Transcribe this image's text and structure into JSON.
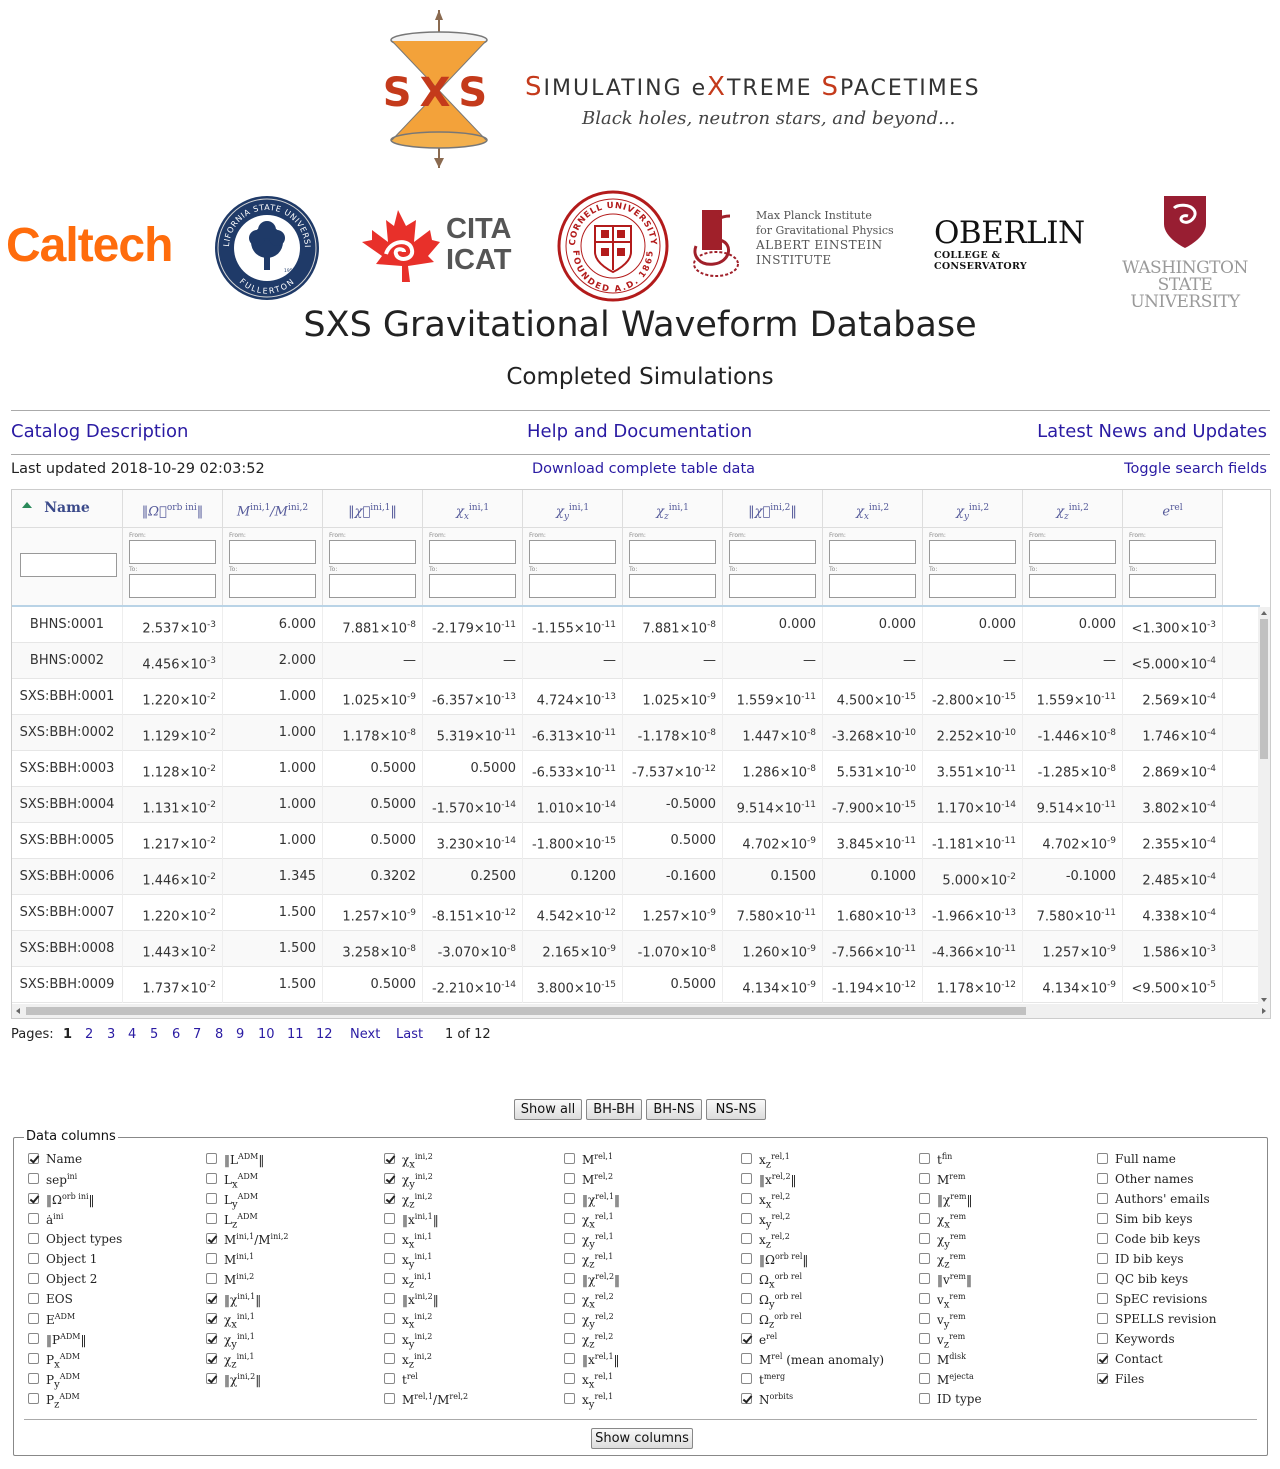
{
  "banner": {
    "logo_text": "SXS",
    "title_parts": [
      {
        "cap": "S",
        "rest": "IMULATING "
      },
      {
        "cap": "",
        "rest": "e"
      },
      {
        "cap": "X",
        "rest": "TREME "
      },
      {
        "cap": "S",
        "rest": "PACETIMES"
      }
    ],
    "tagline": "Black holes, neutron stars, and beyond..."
  },
  "logos": {
    "caltech": "Caltech",
    "cita": [
      "CITA",
      "ICAT"
    ],
    "mpi": [
      "Max Planck Institute",
      "for Gravitational Physics",
      "ALBERT EINSTEIN INSTITUTE"
    ],
    "oberlin_main": "OBERLIN",
    "oberlin_sub": "COLLEGE & CONSERVATORY",
    "wsu": [
      "WASHINGTON STATE",
      "UNIVERSITY"
    ],
    "csuf_ring_top": "CALIFORNIA STATE UNIVERSITY",
    "csuf_ring_bottom": "FULLERTON",
    "csuf_year": "1957",
    "cornell_ring_top": "CORNELL UNIVERSITY",
    "cornell_ring_bottom": "FOUNDED A.D. 1865"
  },
  "page": {
    "title": "SXS Gravitational Waveform Database",
    "subtitle": "Completed Simulations"
  },
  "nav": {
    "catalog": "Catalog Description",
    "help": "Help and Documentation",
    "news": "Latest News and Updates"
  },
  "info": {
    "last_updated": "Last updated 2018-10-29 02:03:52",
    "download": "Download complete table data",
    "toggle": "Toggle search fields"
  },
  "table": {
    "headers": [
      {
        "base": "Name",
        "sup": ""
      },
      {
        "base": "‖Ω⃗",
        "sup": "orb ini",
        "post": "‖"
      },
      {
        "base": "M",
        "sup": "ini,1",
        "post": "/M",
        "sup2": "ini,2"
      },
      {
        "base": "‖χ⃗",
        "sup": "ini,1",
        "post": "‖"
      },
      {
        "base": "χ",
        "sub": "x",
        "sup": "ini,1"
      },
      {
        "base": "χ",
        "sub": "y",
        "sup": "ini,1"
      },
      {
        "base": "χ",
        "sub": "z",
        "sup": "ini,1"
      },
      {
        "base": "‖χ⃗",
        "sup": "ini,2",
        "post": "‖"
      },
      {
        "base": "χ",
        "sub": "x",
        "sup": "ini,2"
      },
      {
        "base": "χ",
        "sub": "y",
        "sup": "ini,2"
      },
      {
        "base": "χ",
        "sub": "z",
        "sup": "ini,2"
      },
      {
        "base": "e",
        "sup": "rel"
      }
    ],
    "filter_from": "From:",
    "filter_to": "To:",
    "rows": [
      [
        "BHNS:0001",
        "2.537×10^-3",
        "6.000",
        "7.881×10^-8",
        "-2.179×10^-11",
        "-1.155×10^-11",
        "7.881×10^-8",
        "0.000",
        "0.000",
        "0.000",
        "0.000",
        "<1.300×10^-3"
      ],
      [
        "BHNS:0002",
        "4.456×10^-3",
        "2.000",
        "—",
        "—",
        "—",
        "—",
        "—",
        "—",
        "—",
        "—",
        "<5.000×10^-4"
      ],
      [
        "SXS:BBH:0001",
        "1.220×10^-2",
        "1.000",
        "1.025×10^-9",
        "-6.357×10^-13",
        "4.724×10^-13",
        "1.025×10^-9",
        "1.559×10^-11",
        "4.500×10^-15",
        "-2.800×10^-15",
        "1.559×10^-11",
        "2.569×10^-4"
      ],
      [
        "SXS:BBH:0002",
        "1.129×10^-2",
        "1.000",
        "1.178×10^-8",
        "5.319×10^-11",
        "-6.313×10^-11",
        "-1.178×10^-8",
        "1.447×10^-8",
        "-3.268×10^-10",
        "2.252×10^-10",
        "-1.446×10^-8",
        "1.746×10^-4"
      ],
      [
        "SXS:BBH:0003",
        "1.128×10^-2",
        "1.000",
        "0.5000",
        "0.5000",
        "-6.533×10^-11",
        "-7.537×10^-12",
        "1.286×10^-8",
        "5.531×10^-10",
        "3.551×10^-11",
        "-1.285×10^-8",
        "2.869×10^-4"
      ],
      [
        "SXS:BBH:0004",
        "1.131×10^-2",
        "1.000",
        "0.5000",
        "-1.570×10^-14",
        "1.010×10^-14",
        "-0.5000",
        "9.514×10^-11",
        "-7.900×10^-15",
        "1.170×10^-14",
        "9.514×10^-11",
        "3.802×10^-4"
      ],
      [
        "SXS:BBH:0005",
        "1.217×10^-2",
        "1.000",
        "0.5000",
        "3.230×10^-14",
        "-1.800×10^-15",
        "0.5000",
        "4.702×10^-9",
        "3.845×10^-11",
        "-1.181×10^-11",
        "4.702×10^-9",
        "2.355×10^-4"
      ],
      [
        "SXS:BBH:0006",
        "1.446×10^-2",
        "1.345",
        "0.3202",
        "0.2500",
        "0.1200",
        "-0.1600",
        "0.1500",
        "0.1000",
        "5.000×10^-2",
        "-0.1000",
        "2.485×10^-4"
      ],
      [
        "SXS:BBH:0007",
        "1.220×10^-2",
        "1.500",
        "1.257×10^-9",
        "-8.151×10^-12",
        "4.542×10^-12",
        "1.257×10^-9",
        "7.580×10^-11",
        "1.680×10^-13",
        "-1.966×10^-13",
        "7.580×10^-11",
        "4.338×10^-4"
      ],
      [
        "SXS:BBH:0008",
        "1.443×10^-2",
        "1.500",
        "3.258×10^-8",
        "-3.070×10^-8",
        "2.165×10^-9",
        "-1.070×10^-8",
        "1.260×10^-9",
        "-7.566×10^-11",
        "-4.366×10^-11",
        "1.257×10^-9",
        "1.586×10^-3"
      ],
      [
        "SXS:BBH:0009",
        "1.737×10^-2",
        "1.500",
        "0.5000",
        "-2.210×10^-14",
        "3.800×10^-15",
        "0.5000",
        "4.134×10^-9",
        "-1.194×10^-12",
        "1.178×10^-12",
        "4.134×10^-9",
        "<9.500×10^-5"
      ]
    ]
  },
  "pager": {
    "label": "Pages:",
    "current": "1",
    "pages": [
      "2",
      "3",
      "4",
      "5",
      "6",
      "7",
      "8",
      "9",
      "10",
      "11",
      "12"
    ],
    "next": "Next",
    "last": "Last",
    "of": "1 of 12"
  },
  "type_buttons": [
    "Show all",
    "BH-BH",
    "BH-NS",
    "NS-NS"
  ],
  "data_columns": {
    "legend": "Data columns",
    "show_columns": "Show columns",
    "columns": [
      [
        {
          "label": "Name",
          "checked": true
        },
        {
          "label": "sep^ini",
          "checked": false
        },
        {
          "label": "‖Ω^orb ini‖",
          "checked": true
        },
        {
          "label": "ȧ^ini",
          "checked": false
        },
        {
          "label": "Object types",
          "checked": false
        },
        {
          "label": "Object 1",
          "checked": false
        },
        {
          "label": "Object 2",
          "checked": false
        },
        {
          "label": "EOS",
          "checked": false
        },
        {
          "label": "E^ADM",
          "checked": false
        },
        {
          "label": "‖P^ADM‖",
          "checked": false
        },
        {
          "label": "P_x^ADM",
          "checked": false
        },
        {
          "label": "P_y^ADM",
          "checked": false
        },
        {
          "label": "P_z^ADM",
          "checked": false
        }
      ],
      [
        {
          "label": "‖L^ADM‖",
          "checked": false
        },
        {
          "label": "L_x^ADM",
          "checked": false
        },
        {
          "label": "L_y^ADM",
          "checked": false
        },
        {
          "label": "L_z^ADM",
          "checked": false
        },
        {
          "label": "M^ini,1/M^ini,2",
          "checked": true
        },
        {
          "label": "M^ini,1",
          "checked": false
        },
        {
          "label": "M^ini,2",
          "checked": false
        },
        {
          "label": "‖χ^ini,1‖",
          "checked": true
        },
        {
          "label": "χ_x^ini,1",
          "checked": true
        },
        {
          "label": "χ_y^ini,1",
          "checked": true
        },
        {
          "label": "χ_z^ini,1",
          "checked": true
        },
        {
          "label": "‖χ^ini,2‖",
          "checked": true
        }
      ],
      [
        {
          "label": "χ_x^ini,2",
          "checked": true
        },
        {
          "label": "χ_y^ini,2",
          "checked": true
        },
        {
          "label": "χ_z^ini,2",
          "checked": true
        },
        {
          "label": "‖x^ini,1‖",
          "checked": false
        },
        {
          "label": "x_x^ini,1",
          "checked": false
        },
        {
          "label": "x_y^ini,1",
          "checked": false
        },
        {
          "label": "x_z^ini,1",
          "checked": false
        },
        {
          "label": "‖x^ini,2‖",
          "checked": false
        },
        {
          "label": "x_x^ini,2",
          "checked": false
        },
        {
          "label": "x_y^ini,2",
          "checked": false
        },
        {
          "label": "x_z^ini,2",
          "checked": false
        },
        {
          "label": "t^rel",
          "checked": false
        },
        {
          "label": "M^rel,1/M^rel,2",
          "checked": false
        }
      ],
      [
        {
          "label": "M^rel,1",
          "checked": false
        },
        {
          "label": "M^rel,2",
          "checked": false
        },
        {
          "label": "‖χ^rel,1‖",
          "checked": false
        },
        {
          "label": "χ_x^rel,1",
          "checked": false
        },
        {
          "label": "χ_y^rel,1",
          "checked": false
        },
        {
          "label": "χ_z^rel,1",
          "checked": false
        },
        {
          "label": "‖χ^rel,2‖",
          "checked": false
        },
        {
          "label": "χ_x^rel,2",
          "checked": false
        },
        {
          "label": "χ_y^rel,2",
          "checked": false
        },
        {
          "label": "χ_z^rel,2",
          "checked": false
        },
        {
          "label": "‖x^rel,1‖",
          "checked": false
        },
        {
          "label": "x_x^rel,1",
          "checked": false
        },
        {
          "label": "x_y^rel,1",
          "checked": false
        }
      ],
      [
        {
          "label": "x_z^rel,1",
          "checked": false
        },
        {
          "label": "‖x^rel,2‖",
          "checked": false
        },
        {
          "label": "x_x^rel,2",
          "checked": false
        },
        {
          "label": "x_y^rel,2",
          "checked": false
        },
        {
          "label": "x_z^rel,2",
          "checked": false
        },
        {
          "label": "‖Ω^orb rel‖",
          "checked": false
        },
        {
          "label": "Ω_x^orb rel",
          "checked": false
        },
        {
          "label": "Ω_y^orb rel",
          "checked": false
        },
        {
          "label": "Ω_z^orb rel",
          "checked": false
        },
        {
          "label": "e^rel",
          "checked": true
        },
        {
          "label": "M^rel (mean anomaly)",
          "checked": false
        },
        {
          "label": "t^merg",
          "checked": false
        },
        {
          "label": "N^orbits",
          "checked": true
        }
      ],
      [
        {
          "label": "t^fin",
          "checked": false
        },
        {
          "label": "M^rem",
          "checked": false
        },
        {
          "label": "‖χ^rem‖",
          "checked": false
        },
        {
          "label": "χ_x^rem",
          "checked": false
        },
        {
          "label": "χ_y^rem",
          "checked": false
        },
        {
          "label": "χ_z^rem",
          "checked": false
        },
        {
          "label": "‖v^rem‖",
          "checked": false
        },
        {
          "label": "v_x^rem",
          "checked": false
        },
        {
          "label": "v_y^rem",
          "checked": false
        },
        {
          "label": "v_z^rem",
          "checked": false
        },
        {
          "label": "M^disk",
          "checked": false
        },
        {
          "label": "M^ejecta",
          "checked": false
        },
        {
          "label": "ID type",
          "checked": false
        }
      ],
      [
        {
          "label": "Full name",
          "checked": false
        },
        {
          "label": "Other names",
          "checked": false
        },
        {
          "label": "Authors' emails",
          "checked": false
        },
        {
          "label": "Sim bib keys",
          "checked": false
        },
        {
          "label": "Code bib keys",
          "checked": false
        },
        {
          "label": "ID bib keys",
          "checked": false
        },
        {
          "label": "QC bib keys",
          "checked": false
        },
        {
          "label": "SpEC revisions",
          "checked": false
        },
        {
          "label": "SPELLS revision",
          "checked": false
        },
        {
          "label": "Keywords",
          "checked": false
        },
        {
          "label": "Contact",
          "checked": true
        },
        {
          "label": "Files",
          "checked": true
        }
      ]
    ]
  },
  "colors": {
    "link": "#2a1ba3",
    "sxs_red": "#c43a1b",
    "caltech_orange": "#ff6c0c",
    "cornell_red": "#b31b1b",
    "wsu_crimson": "#981e32",
    "csuf_blue": "#1f3a68"
  }
}
